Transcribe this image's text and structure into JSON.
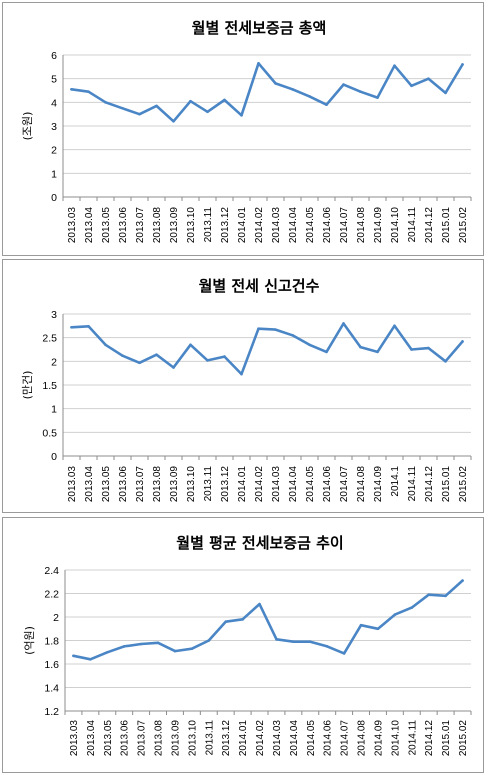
{
  "chart_data": [
    {
      "type": "line",
      "title": "월별 전세보증금 총액",
      "ylabel": "(조원)",
      "xlabel": "",
      "ylim": [
        0,
        6
      ],
      "yticks": [
        "0",
        "1",
        "2",
        "3",
        "4",
        "5",
        "6"
      ],
      "grid": true,
      "line_color": "#4a86c5",
      "categories": [
        "2013.03",
        "2013.04",
        "2013.05",
        "2013.06",
        "2013.07",
        "2013.08",
        "2013.09",
        "2013.10",
        "2013.11",
        "2013.12",
        "2014.01",
        "2014.02",
        "2014.03",
        "2014.04",
        "2014.05",
        "2014.06",
        "2014.07",
        "2014.08",
        "2014.09",
        "2014.10",
        "2014.11",
        "2014.12",
        "2015.01",
        "2015.02"
      ],
      "values": [
        4.55,
        4.45,
        4.0,
        3.75,
        3.5,
        3.85,
        3.2,
        4.05,
        3.6,
        4.1,
        3.45,
        5.65,
        4.8,
        4.55,
        4.25,
        3.9,
        4.75,
        4.45,
        4.2,
        5.55,
        4.7,
        5.0,
        4.4,
        5.6
      ]
    },
    {
      "type": "line",
      "title": "월별 전세 신고건수",
      "ylabel": "(만건)",
      "xlabel": "",
      "ylim": [
        0,
        3
      ],
      "yticks": [
        "0",
        "0.5",
        "1",
        "1.5",
        "2",
        "2.5",
        "3"
      ],
      "grid": true,
      "line_color": "#4a86c5",
      "categories": [
        "2013.03",
        "2013.04",
        "2013.05",
        "2013.06",
        "2013.07",
        "2013.08",
        "2013.09",
        "2013.10",
        "2013.11",
        "2013.12",
        "2014.01",
        "2014.02",
        "2014.03",
        "2014.04",
        "2014.05",
        "2014.06",
        "2014.07",
        "2014.08",
        "2014.09",
        "2014.1",
        "2014.11",
        "2014.12",
        "2015.01",
        "2015.02"
      ],
      "values": [
        2.72,
        2.74,
        2.35,
        2.12,
        1.97,
        2.14,
        1.87,
        2.35,
        2.02,
        2.1,
        1.73,
        2.69,
        2.67,
        2.55,
        2.35,
        2.2,
        2.8,
        2.3,
        2.2,
        2.75,
        2.25,
        2.28,
        2.0,
        2.42
      ]
    },
    {
      "type": "line",
      "title": "월별 평균 전세보증금 추이",
      "ylabel": "(억원)",
      "xlabel": "",
      "ylim": [
        1.2,
        2.4
      ],
      "yticks": [
        "1.2",
        "1.4",
        "1.6",
        "1.8",
        "2",
        "2.2",
        "2.4"
      ],
      "grid": true,
      "line_color": "#4a86c5",
      "categories": [
        "2013.03",
        "2013.04",
        "2013.05",
        "2013.06",
        "2013.07",
        "2013.08",
        "2013.09",
        "2013.10",
        "2013.11",
        "2013.12",
        "2014.01",
        "2014.02",
        "2014.03",
        "2014.04",
        "2014.05",
        "2014.06",
        "2014.07",
        "2014.08",
        "2014.09",
        "2014.10",
        "2014.11",
        "2014.12",
        "2015.01",
        "2015.02"
      ],
      "values": [
        1.67,
        1.64,
        1.7,
        1.75,
        1.77,
        1.78,
        1.71,
        1.73,
        1.8,
        1.96,
        1.98,
        2.11,
        1.81,
        1.79,
        1.79,
        1.75,
        1.69,
        1.93,
        1.9,
        2.02,
        2.08,
        2.19,
        2.18,
        2.31
      ]
    }
  ]
}
